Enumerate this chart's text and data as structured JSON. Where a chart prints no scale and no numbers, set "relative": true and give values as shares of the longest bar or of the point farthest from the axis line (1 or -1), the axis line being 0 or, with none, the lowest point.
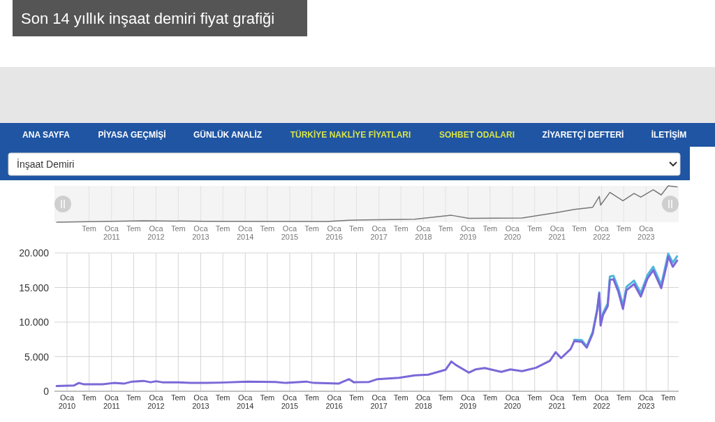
{
  "chart_data": [
    {
      "type": "other",
      "title": "Son 14 yıllık inşaat demiri fiyat grafiği",
      "annotations": [
        "ANA SAYFA",
        "PİYASA GEÇMİŞİ",
        "GÜNLÜK ANALİZ",
        "TÜRKİYE NAKLİYE FİYATLARI",
        "SOHBET ODALARI",
        "ZİYARETÇİ DEFTERİ",
        "İLETİŞİM",
        "İnşaat Demiri"
      ]
    },
    {
      "type": "line",
      "relative": true,
      "tick_labels": "x",
      "grid": "x",
      "xlim": [
        "2009-09-20",
        "2023-09-25"
      ],
      "xticks": [
        {
          "value": "2010-07",
          "label": "Tem"
        },
        {
          "value": "2011-01",
          "label": "Oca 2011"
        },
        {
          "value": "2011-07",
          "label": "Tem"
        },
        {
          "value": "2012-01",
          "label": "Oca 2012"
        },
        {
          "value": "2012-07",
          "label": "Tem"
        },
        {
          "value": "2013-01",
          "label": "Oca 2013"
        },
        {
          "value": "2013-07",
          "label": "Tem"
        },
        {
          "value": "2014-01",
          "label": "Oca 2014"
        },
        {
          "value": "2014-07",
          "label": "Tem"
        },
        {
          "value": "2015-01",
          "label": "Oca 2015"
        },
        {
          "value": "2015-07",
          "label": "Tem"
        },
        {
          "value": "2016-01",
          "label": "Oca 2016"
        },
        {
          "value": "2016-07",
          "label": "Tem"
        },
        {
          "value": "2017-01",
          "label": "Oca 2017"
        },
        {
          "value": "2017-07",
          "label": "Tem"
        },
        {
          "value": "2018-01",
          "label": "Oca 2018"
        },
        {
          "value": "2018-07",
          "label": "Tem"
        },
        {
          "value": "2019-01",
          "label": "Oca 2019"
        },
        {
          "value": "2019-07",
          "label": "Tem"
        },
        {
          "value": "2020-01",
          "label": "Oca 2020"
        },
        {
          "value": "2020-07",
          "label": "Tem"
        },
        {
          "value": "2021-01",
          "label": "Oca 2021"
        },
        {
          "value": "2021-07",
          "label": "Tem"
        },
        {
          "value": "2022-01",
          "label": "Oca 2022"
        },
        {
          "value": "2022-07",
          "label": "Tem"
        },
        {
          "value": "2023-01",
          "label": "Oca 2023"
        }
      ],
      "x": [
        "2009-10-08",
        "2011-09-20",
        "2013-02-15",
        "2015-11-03",
        "2016-05-01",
        "2017-10-22",
        "2018-08-18",
        "2019-01-08",
        "2020-03-20",
        "2020-12-20",
        "2021-05-22",
        "2021-10-20",
        "2021-12-13",
        "2021-12-24",
        "2022-03-10",
        "2022-06-25",
        "2022-09-24",
        "2022-11-18",
        "2023-02-28",
        "2023-05-05",
        "2023-07-01",
        "2023-09-12"
      ],
      "series": [
        {
          "color": "#777777",
          "values": [
            0,
            0.04,
            0.024,
            0.021,
            0.053,
            0.083,
            0.19,
            0.104,
            0.115,
            0.26,
            0.35,
            0.41,
            0.71,
            0.47,
            0.82,
            0.59,
            0.79,
            0.69,
            0.89,
            0.75,
            1,
            0.97
          ]
        }
      ]
    },
    {
      "type": "line",
      "grid": true,
      "xlim": [
        "2009-09-20",
        "2023-09-25"
      ],
      "ylim": [
        0,
        20000
      ],
      "yticks": [
        0,
        {
          "value": 5000,
          "label": "5.000"
        },
        {
          "value": 10000,
          "label": "10.000"
        },
        {
          "value": 15000,
          "label": "15.000"
        },
        {
          "value": 20000,
          "label": "20.000"
        }
      ],
      "xticks": [
        {
          "value": "2010-01",
          "label": "Oca 2010"
        },
        {
          "value": "2010-07",
          "label": "Tem"
        },
        {
          "value": "2011-01",
          "label": "Oca 2011"
        },
        {
          "value": "2011-07",
          "label": "Tem"
        },
        {
          "value": "2012-01",
          "label": "Oca 2012"
        },
        {
          "value": "2012-07",
          "label": "Tem"
        },
        {
          "value": "2013-01",
          "label": "Oca 2013"
        },
        {
          "value": "2013-07",
          "label": "Tem"
        },
        {
          "value": "2014-01",
          "label": "Oca 2014"
        },
        {
          "value": "2014-07",
          "label": "Tem"
        },
        {
          "value": "2015-01",
          "label": "Oca 2015"
        },
        {
          "value": "2015-07",
          "label": "Tem"
        },
        {
          "value": "2016-01",
          "label": "Oca 2016"
        },
        {
          "value": "2016-07",
          "label": "Tem"
        },
        {
          "value": "2017-01",
          "label": "Oca 2017"
        },
        {
          "value": "2017-07",
          "label": "Tem"
        },
        {
          "value": "2018-01",
          "label": "Oca 2018"
        },
        {
          "value": "2018-07",
          "label": "Tem"
        },
        {
          "value": "2019-01",
          "label": "Oca 2019"
        },
        {
          "value": "2019-07",
          "label": "Tem"
        },
        {
          "value": "2020-01",
          "label": "Oca 2020"
        },
        {
          "value": "2020-07",
          "label": "Tem"
        },
        {
          "value": "2021-01",
          "label": "Oca 2021"
        },
        {
          "value": "2021-07",
          "label": "Tem"
        },
        {
          "value": "2022-01",
          "label": "Oca 2022"
        },
        {
          "value": "2022-07",
          "label": "Tem"
        },
        {
          "value": "2023-01",
          "label": "Oca 2023"
        },
        {
          "value": "2023-07",
          "label": "Tem"
        }
      ],
      "x": [
        "2009-10-08",
        "2010-02-28",
        "2010-04-08",
        "2010-05-15",
        "2010-10-20",
        "2011-01-20",
        "2011-04-12",
        "2011-06-20",
        "2011-09-20",
        "2011-11-18",
        "2012-01-01",
        "2012-02-20",
        "2012-07-01",
        "2012-10-08",
        "2013-02-15",
        "2013-06-10",
        "2014-01-22",
        "2014-09-08",
        "2014-12-01",
        "2015-05-15",
        "2015-07-20",
        "2015-11-03",
        "2016-02-05",
        "2016-05-01",
        "2016-06-10",
        "2016-10-12",
        "2016-12-20",
        "2017-06-15",
        "2017-10-22",
        "2018-02-10",
        "2018-07-01",
        "2018-08-18",
        "2018-09-24",
        "2019-01-08",
        "2019-03-03",
        "2019-05-18",
        "2019-10-01",
        "2019-12-15",
        "2020-03-20",
        "2020-07-12",
        "2020-11-03",
        "2020-12-20",
        "2021-02-03",
        "2021-04-22",
        "2021-05-22",
        "2021-07-22",
        "2021-09-01",
        "2021-10-20",
        "2021-11-25",
        "2021-12-13",
        "2021-12-24",
        "2022-01-12",
        "2022-02-20",
        "2022-03-10",
        "2022-04-08",
        "2022-05-18",
        "2022-06-25",
        "2022-07-24",
        "2022-09-24",
        "2022-11-18",
        "2023-01-12",
        "2023-02-28",
        "2023-05-05",
        "2023-06-20",
        "2023-07-01",
        "2023-08-08",
        "2023-09-12"
      ],
      "series": [
        {
          "color": "#4fb6dc",
          "x": [
            "2021-05-22",
            "2021-07-22",
            "2021-09-01",
            "2021-10-20",
            "2021-11-25",
            "2021-12-13",
            "2021-12-24",
            "2022-01-12",
            "2022-02-20",
            "2022-03-10",
            "2022-04-08",
            "2022-05-18",
            "2022-06-25",
            "2022-07-24",
            "2022-09-24",
            "2022-11-18",
            "2023-01-12",
            "2023-02-28",
            "2023-05-05",
            "2023-06-20",
            "2023-07-01",
            "2023-08-08",
            "2023-09-12"
          ],
          "values": [
            7450,
            7400,
            6500,
            8600,
            11800,
            14300,
            9700,
            11300,
            12700,
            16600,
            16700,
            14900,
            12400,
            15100,
            16000,
            14200,
            16800,
            18000,
            15400,
            19000,
            19900,
            18600,
            19500
          ]
        },
        {
          "color": "#7b68d8",
          "values": [
            750,
            840,
            1200,
            1020,
            1020,
            1200,
            1100,
            1400,
            1500,
            1300,
            1450,
            1300,
            1300,
            1200,
            1200,
            1250,
            1400,
            1350,
            1200,
            1400,
            1200,
            1150,
            1100,
            1750,
            1300,
            1350,
            1750,
            1950,
            2300,
            2400,
            3100,
            4300,
            3800,
            2700,
            3150,
            3350,
            2800,
            3150,
            2900,
            3400,
            4400,
            5650,
            4800,
            6100,
            7250,
            7150,
            6300,
            8350,
            11600,
            14150,
            9500,
            11000,
            12300,
            16100,
            16200,
            14400,
            11900,
            14600,
            15500,
            13700,
            16300,
            17500,
            14900,
            18400,
            19500,
            18000,
            18900
          ]
        }
      ]
    }
  ]
}
